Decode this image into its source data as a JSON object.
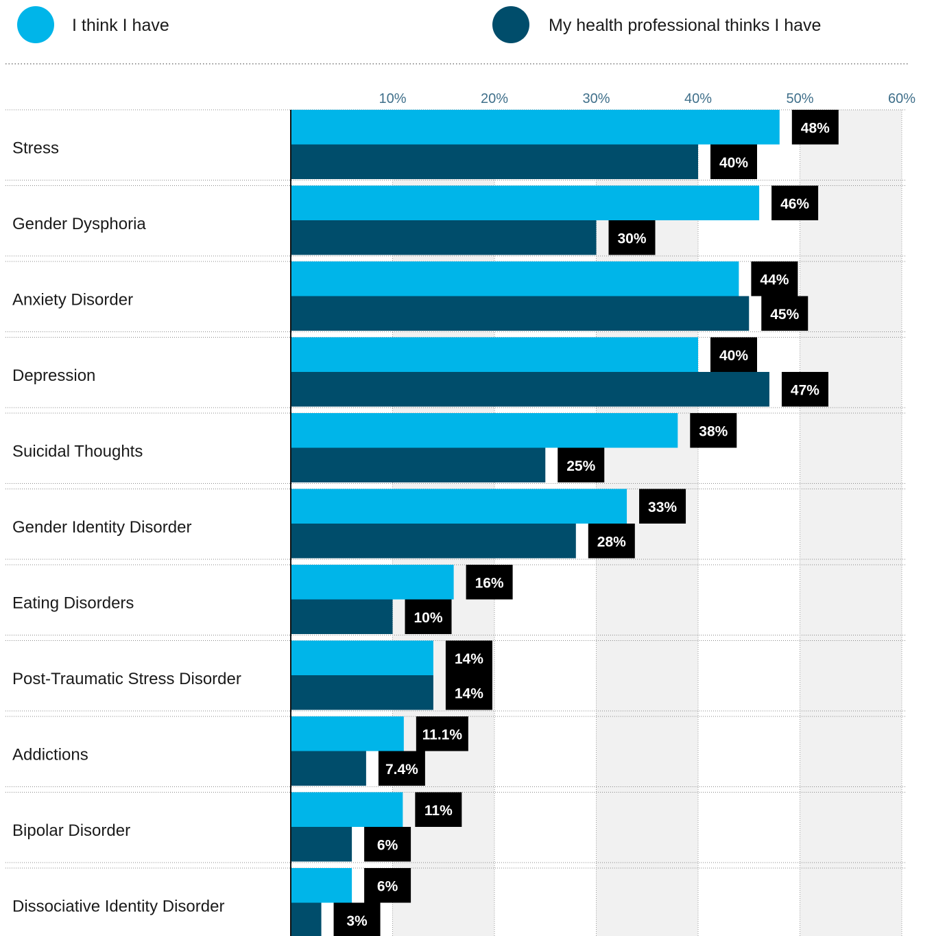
{
  "chart_data": {
    "type": "bar",
    "orientation": "horizontal",
    "categories": [
      "Stress",
      "Gender Dysphoria",
      "Anxiety Disorder",
      "Depression",
      "Suicidal Thoughts",
      "Gender Identity Disorder",
      "Eating Disorders",
      "Post-Traumatic Stress Disorder",
      "Addictions",
      "Bipolar Disorder",
      "Dissociative Identity Disorder"
    ],
    "series": [
      {
        "name": "I think I have",
        "color": "#00b5e9",
        "values": [
          48,
          46,
          44,
          40,
          38,
          33,
          16,
          14,
          11.1,
          11,
          6
        ],
        "labels": [
          "48%",
          "46%",
          "44%",
          "40%",
          "38%",
          "33%",
          "16%",
          "14%",
          "11.1%",
          "11%",
          "6%"
        ]
      },
      {
        "name": "My health professional thinks I have",
        "color": "#004d6b",
        "values": [
          40,
          30,
          45,
          47,
          25,
          28,
          10,
          14,
          7.4,
          6,
          3
        ],
        "labels": [
          "40%",
          "30%",
          "45%",
          "47%",
          "25%",
          "28%",
          "10%",
          "14%",
          "7.4%",
          "6%",
          "3%"
        ]
      }
    ],
    "ticks": [
      "10%",
      "20%",
      "30%",
      "40%",
      "50%",
      "60%"
    ],
    "tick_values": [
      10,
      20,
      30,
      40,
      50,
      60
    ],
    "xlim": [
      0,
      60
    ],
    "grid": true,
    "legend_position": "top",
    "label_box_color": "#000000",
    "band_color": "#f1f1f1"
  }
}
